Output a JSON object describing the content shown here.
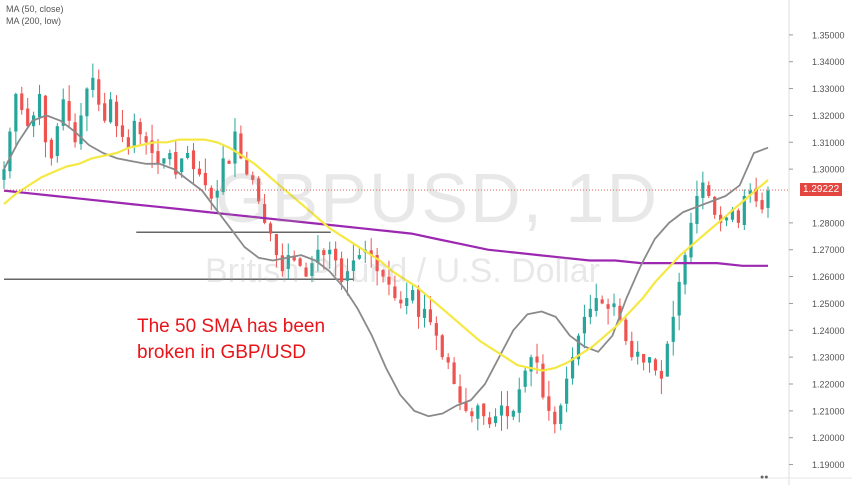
{
  "legend": {
    "ma50": "MA (50, close)",
    "ma200": "MA (200, low)"
  },
  "watermark": {
    "symbol": "GBPUSD, 1D",
    "description": "British Pound / U.S. Dollar"
  },
  "annotation": {
    "line1": "The 50 SMA has been",
    "line2": "broken in GBP/USD"
  },
  "current_price_label": "1.29222",
  "colors": {
    "bull": "#26a69a",
    "bear": "#ef5350",
    "ma50": "#f5e842",
    "ma200": "#9c27b0",
    "ma_fast": "#8a8a8a",
    "annotation": "#e8141a",
    "price_label": "#e3453f"
  },
  "chart_data": {
    "type": "line",
    "title": "GBPUSD, 1D",
    "ylim": [
      1.185,
      1.36
    ],
    "y_ticks": [
      "1.35000",
      "1.34000",
      "1.33000",
      "1.32000",
      "1.31000",
      "1.30000",
      "1.28000",
      "1.27000",
      "1.26000",
      "1.25000",
      "1.24000",
      "1.23000",
      "1.22000",
      "1.21000",
      "1.20000",
      "1.19000"
    ],
    "y_tick_values": [
      1.35,
      1.34,
      1.33,
      1.32,
      1.31,
      1.3,
      1.28,
      1.27,
      1.26,
      1.25,
      1.24,
      1.23,
      1.22,
      1.21,
      1.2,
      1.19
    ],
    "x_count": 130,
    "close_series": [
      1.3,
      1.314,
      1.328,
      1.322,
      1.316,
      1.32,
      1.328,
      1.31,
      1.304,
      1.316,
      1.326,
      1.318,
      1.31,
      1.32,
      1.33,
      1.334,
      1.324,
      1.318,
      1.326,
      1.316,
      1.312,
      1.308,
      1.318,
      1.313,
      1.31,
      1.306,
      1.302,
      1.304,
      1.306,
      1.298,
      1.304,
      1.306,
      1.3,
      1.298,
      1.294,
      1.289,
      1.292,
      1.304,
      1.302,
      1.314,
      1.304,
      1.298,
      1.296,
      1.288,
      1.28,
      1.276,
      1.268,
      1.262,
      1.268,
      1.266,
      1.264,
      1.26,
      1.265,
      1.27,
      1.268,
      1.27,
      1.266,
      1.258,
      1.262,
      1.266,
      1.268,
      1.27,
      1.268,
      1.262,
      1.26,
      1.257,
      1.252,
      1.25,
      1.252,
      1.255,
      1.245,
      1.248,
      1.243,
      1.238,
      1.23,
      1.228,
      1.22,
      1.213,
      1.21,
      1.208,
      1.212,
      1.208,
      1.205,
      1.208,
      1.212,
      1.208,
      1.21,
      1.218,
      1.225,
      1.23,
      1.228,
      1.215,
      1.21,
      1.205,
      1.212,
      1.222,
      1.23,
      1.238,
      1.245,
      1.248,
      1.252,
      1.25,
      1.248,
      1.25,
      1.244,
      1.236,
      1.23,
      1.232,
      1.228,
      1.23,
      1.225,
      1.222,
      1.235,
      1.245,
      1.258,
      1.268,
      1.28,
      1.29,
      1.295,
      1.29,
      1.283,
      1.28,
      1.282,
      1.285,
      1.28,
      1.29,
      1.292,
      1.288,
      1.285,
      1.292
    ],
    "ma50": [
      1.287,
      1.291,
      1.294,
      1.297,
      1.299,
      1.301,
      1.302,
      1.304,
      1.305,
      1.306,
      1.308,
      1.309,
      1.31,
      1.31,
      1.311,
      1.311,
      1.311,
      1.31,
      1.308,
      1.305,
      1.302,
      1.298,
      1.294,
      1.29,
      1.286,
      1.282,
      1.278,
      1.275,
      1.272,
      1.269,
      1.266,
      1.262,
      1.259,
      1.256,
      1.252,
      1.248,
      1.244,
      1.24,
      1.236,
      1.233,
      1.23,
      1.227,
      1.226,
      1.225,
      1.226,
      1.228,
      1.231,
      1.234,
      1.238,
      1.242,
      1.247,
      1.252,
      1.258,
      1.263,
      1.268,
      1.272,
      1.276,
      1.28,
      1.284,
      1.288,
      1.292,
      1.296
    ],
    "ma200": [
      1.292,
      1.291,
      1.29,
      1.289,
      1.288,
      1.287,
      1.286,
      1.285,
      1.284,
      1.283,
      1.282,
      1.281,
      1.28,
      1.279,
      1.278,
      1.277,
      1.276,
      1.274,
      1.272,
      1.27,
      1.269,
      1.268,
      1.267,
      1.266,
      1.266,
      1.265,
      1.265,
      1.265,
      1.265,
      1.264,
      1.264
    ],
    "ma_fast": [
      1.3,
      1.31,
      1.318,
      1.32,
      1.318,
      1.314,
      1.309,
      1.306,
      1.304,
      1.303,
      1.302,
      1.302,
      1.3,
      1.296,
      1.292,
      1.285,
      1.278,
      1.271,
      1.267,
      1.266,
      1.267,
      1.268,
      1.266,
      1.262,
      1.256,
      1.248,
      1.238,
      1.226,
      1.216,
      1.21,
      1.208,
      1.209,
      1.212,
      1.214,
      1.22,
      1.23,
      1.24,
      1.246,
      1.247,
      1.245,
      1.238,
      1.234,
      1.232,
      1.238,
      1.252,
      1.264,
      1.274,
      1.28,
      1.284,
      1.286,
      1.288,
      1.29,
      1.294,
      1.306,
      1.308
    ],
    "horizontal_levels": [
      {
        "y": 1.2765,
        "x_from": 0.17,
        "x_to": 0.42
      },
      {
        "y": 1.259,
        "x_from": 0.0,
        "x_to": 0.45
      }
    ],
    "current_price": 1.29222
  }
}
